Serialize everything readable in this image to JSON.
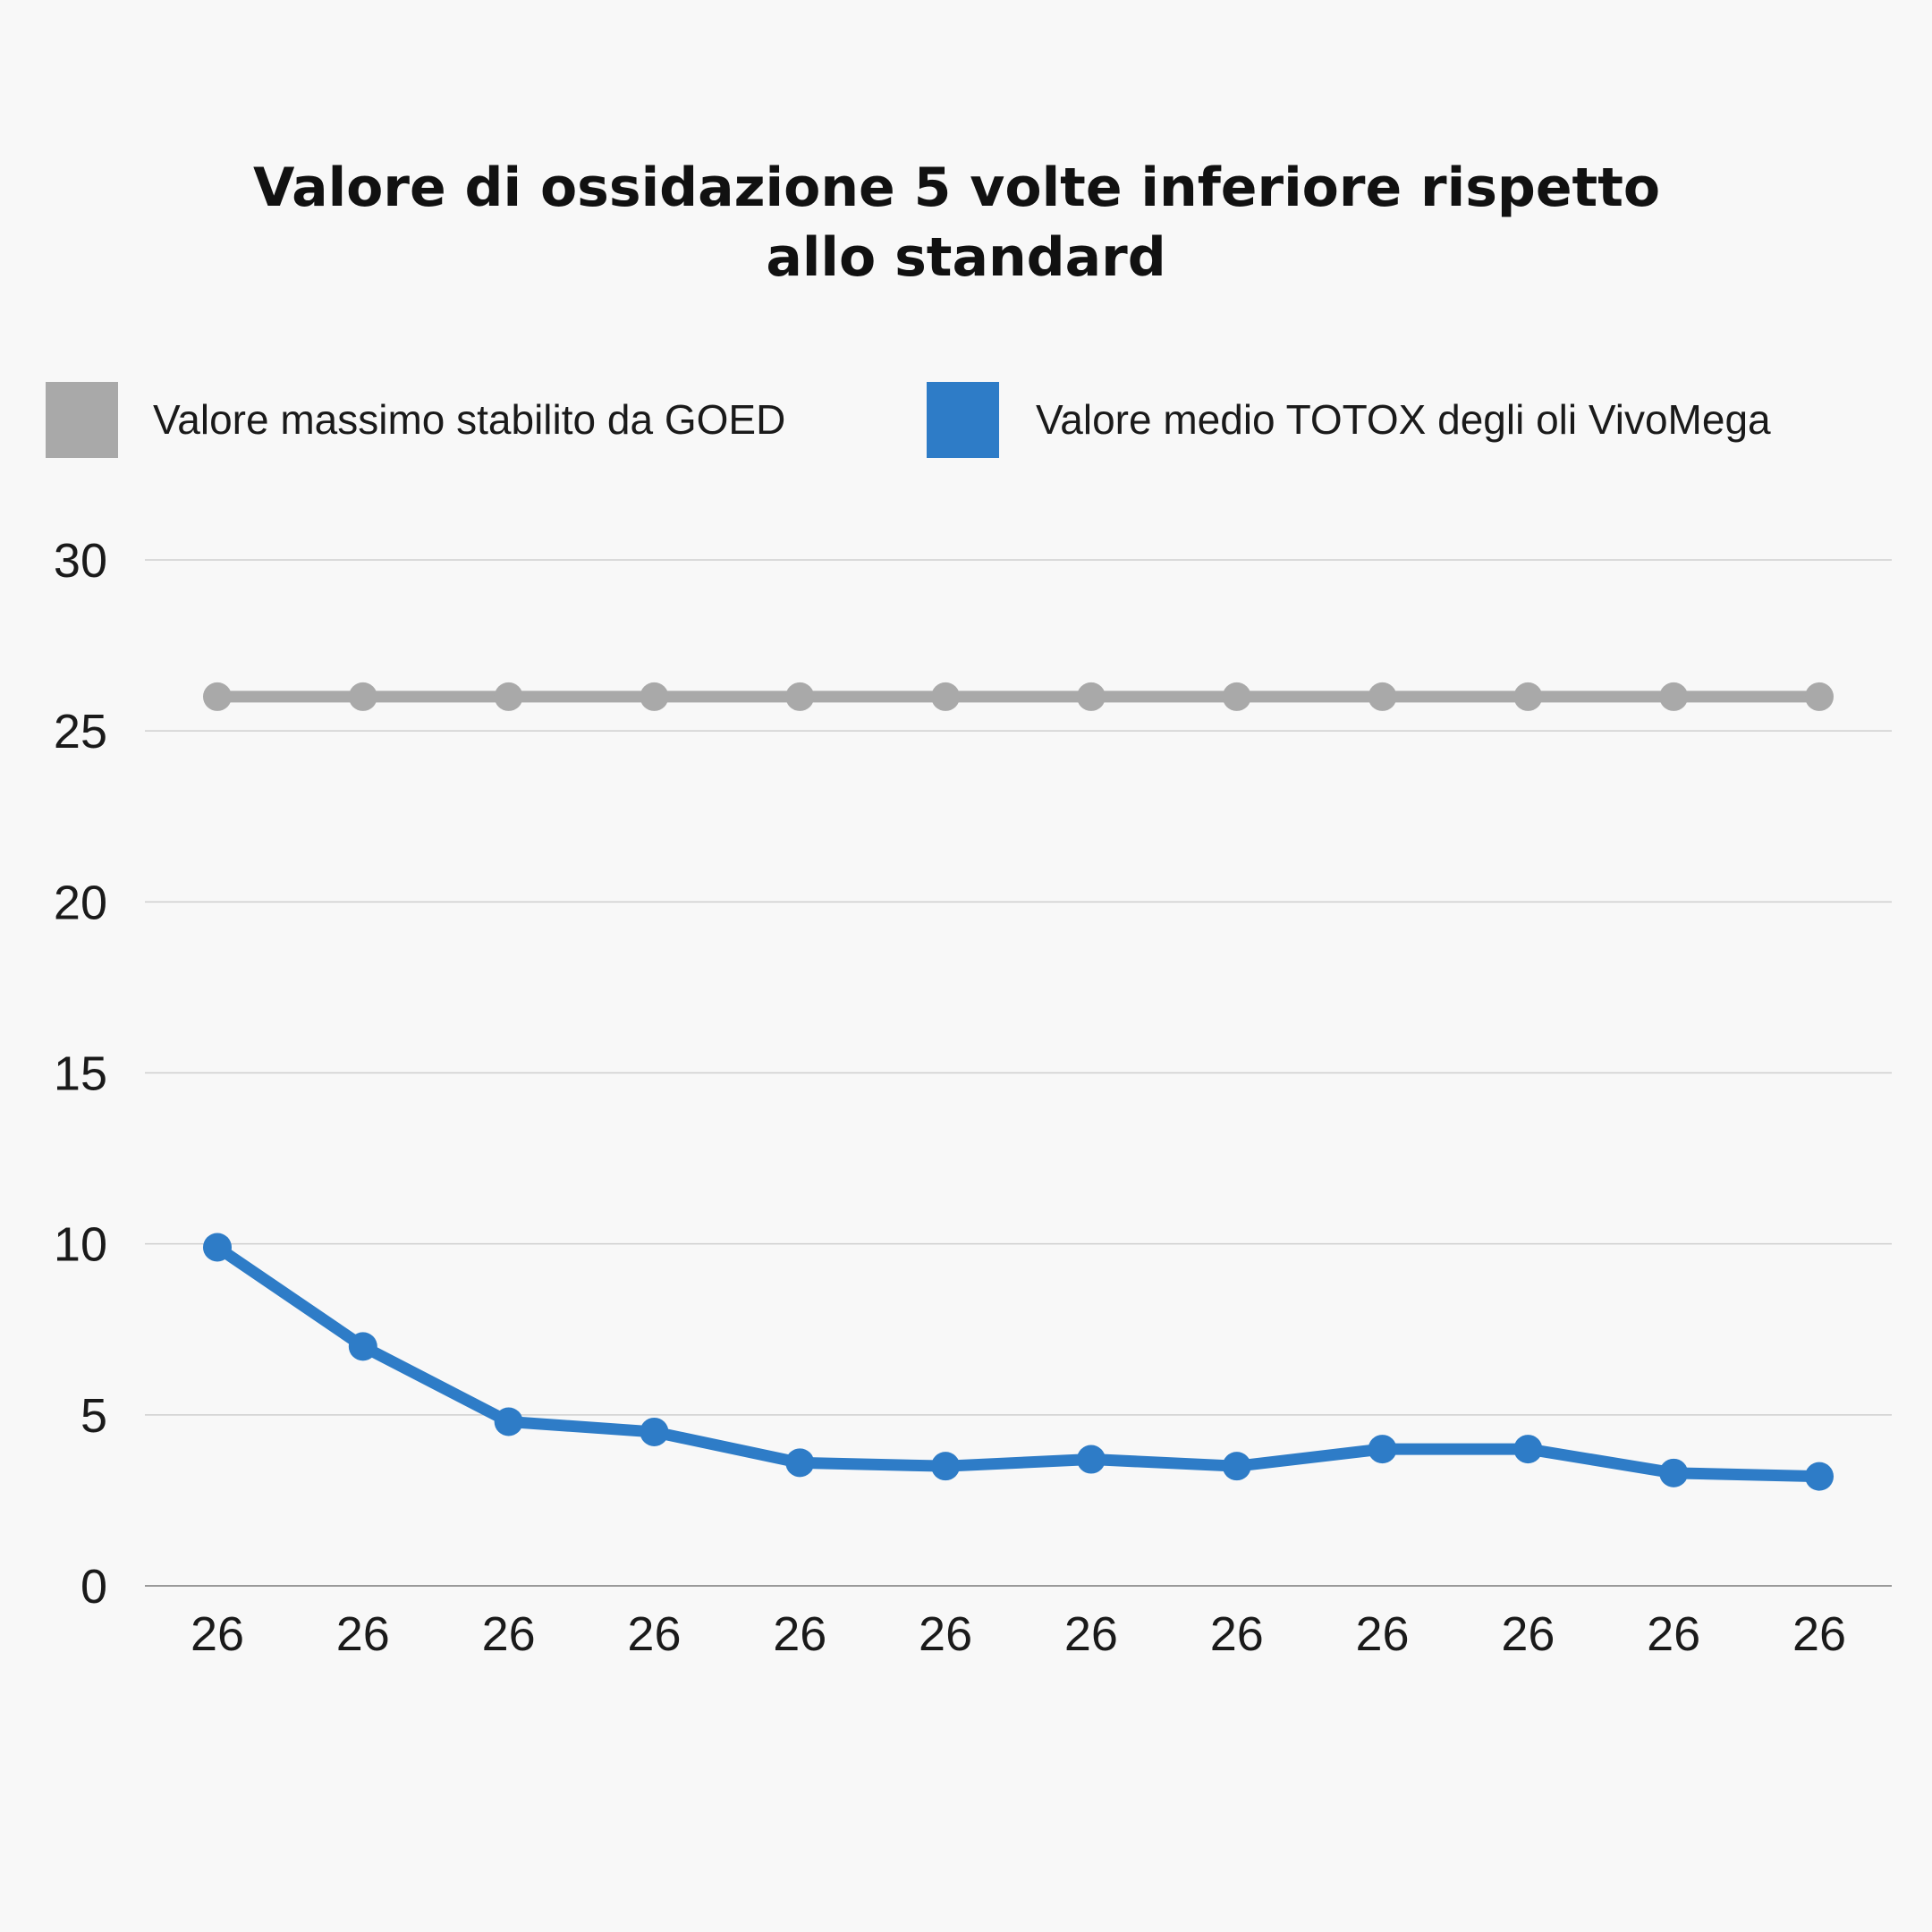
{
  "chart_data": {
    "type": "line",
    "title": "Valore di ossidazione 5 volte inferiore rispetto allo standard",
    "title_lines": [
      "Valore di ossidazione 5 volte inferiore rispetto",
      "allo standard"
    ],
    "xlabel": "",
    "ylabel": "",
    "categories": [
      "26",
      "26",
      "26",
      "26",
      "26",
      "26",
      "26",
      "26",
      "26",
      "26",
      "26",
      "26"
    ],
    "ylim": [
      0,
      30
    ],
    "yticks": [
      0,
      5,
      10,
      15,
      20,
      25,
      30
    ],
    "grid": true,
    "legend_position": "top",
    "series": [
      {
        "name": "Valore massimo stabilito da GOED",
        "color": "#a9a9a9",
        "values": [
          26,
          26,
          26,
          26,
          26,
          26,
          26,
          26,
          26,
          26,
          26,
          26
        ]
      },
      {
        "name": "Valore medio TOTOX degli oli VivoMega",
        "color": "#2e7cc7",
        "values": [
          9.9,
          7.0,
          4.8,
          4.5,
          3.6,
          3.5,
          3.7,
          3.5,
          4.0,
          4.0,
          3.3,
          3.2
        ]
      }
    ]
  }
}
